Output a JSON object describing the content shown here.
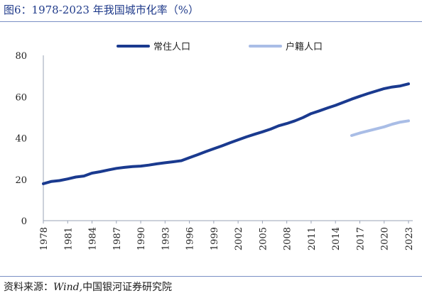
{
  "title": "图6：1978-2023 年我国城市化率（%）",
  "source_label": "资料来源：",
  "source_wind": "Wind,",
  "source_org": "中国银河证券研究院",
  "chart_data": {
    "type": "line",
    "title": "图6：1978-2023 年我国城市化率（%）",
    "xlabel": "",
    "ylabel": "",
    "ylim": [
      0,
      80
    ],
    "yticks": [
      0,
      20,
      40,
      60,
      80
    ],
    "x_tick_labels": [
      "1978",
      "1981",
      "1984",
      "1987",
      "1990",
      "1993",
      "1996",
      "1999",
      "2002",
      "2005",
      "2008",
      "2011",
      "2014",
      "2017",
      "2020",
      "2023"
    ],
    "grid": false,
    "legend_position": "top-right",
    "series": [
      {
        "name": "常住人口",
        "color": "#1a3a8f",
        "x": [
          1978,
          1979,
          1980,
          1981,
          1982,
          1983,
          1984,
          1985,
          1986,
          1987,
          1988,
          1989,
          1990,
          1991,
          1992,
          1993,
          1994,
          1995,
          1996,
          1997,
          1998,
          1999,
          2000,
          2001,
          2002,
          2003,
          2004,
          2005,
          2006,
          2007,
          2008,
          2009,
          2010,
          2011,
          2012,
          2013,
          2014,
          2015,
          2016,
          2017,
          2018,
          2019,
          2020,
          2021,
          2022,
          2023
        ],
        "values": [
          17.9,
          19.0,
          19.4,
          20.2,
          21.1,
          21.6,
          23.0,
          23.7,
          24.5,
          25.3,
          25.8,
          26.2,
          26.4,
          26.9,
          27.5,
          28.0,
          28.5,
          29.0,
          30.5,
          31.9,
          33.4,
          34.8,
          36.2,
          37.7,
          39.1,
          40.5,
          41.8,
          43.0,
          44.3,
          45.9,
          47.0,
          48.3,
          49.9,
          51.8,
          53.1,
          54.5,
          55.8,
          57.3,
          58.8,
          60.2,
          61.5,
          62.7,
          63.9,
          64.7,
          65.2,
          66.2
        ]
      },
      {
        "name": "户籍人口",
        "color": "#a9bde6",
        "x": [
          2016,
          2017,
          2018,
          2019,
          2020,
          2021,
          2022,
          2023
        ],
        "values": [
          41.2,
          42.4,
          43.4,
          44.4,
          45.4,
          46.7,
          47.7,
          48.3
        ]
      }
    ]
  }
}
